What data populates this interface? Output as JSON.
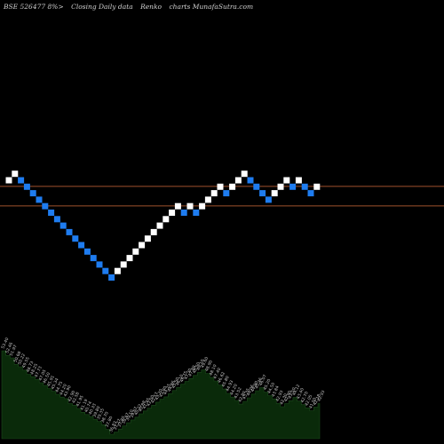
{
  "header": {
    "symbol": "BSE 526477 8%>",
    "description": "Closing Daily data",
    "chart_type_label": "Renko",
    "site": "charts MunafaSutra.com"
  },
  "colors": {
    "background": "#000000",
    "up_brick": "#ffffff",
    "down_brick": "#1e7cf0",
    "level_line": "#a0522d",
    "volume_fill": "#0a2a0a",
    "volume_label": "#c8c8c8"
  },
  "chart_data": {
    "type": "renko",
    "title": "",
    "xlabel": "",
    "ylabel": "",
    "bricks": [
      {
        "step": 0,
        "level": 0,
        "dir": "up"
      },
      {
        "step": 1,
        "level": 1,
        "dir": "up"
      },
      {
        "step": 2,
        "level": 0,
        "dir": "down"
      },
      {
        "step": 3,
        "level": -1,
        "dir": "down"
      },
      {
        "step": 4,
        "level": -2,
        "dir": "down"
      },
      {
        "step": 5,
        "level": -3,
        "dir": "down"
      },
      {
        "step": 6,
        "level": -4,
        "dir": "down"
      },
      {
        "step": 7,
        "level": -5,
        "dir": "down"
      },
      {
        "step": 8,
        "level": -6,
        "dir": "down"
      },
      {
        "step": 9,
        "level": -7,
        "dir": "down"
      },
      {
        "step": 10,
        "level": -8,
        "dir": "down"
      },
      {
        "step": 11,
        "level": -9,
        "dir": "down"
      },
      {
        "step": 12,
        "level": -10,
        "dir": "down"
      },
      {
        "step": 13,
        "level": -11,
        "dir": "down"
      },
      {
        "step": 14,
        "level": -12,
        "dir": "down"
      },
      {
        "step": 15,
        "level": -13,
        "dir": "down"
      },
      {
        "step": 16,
        "level": -14,
        "dir": "down"
      },
      {
        "step": 17,
        "level": -15,
        "dir": "down"
      },
      {
        "step": 18,
        "level": -14,
        "dir": "up"
      },
      {
        "step": 19,
        "level": -13,
        "dir": "up"
      },
      {
        "step": 20,
        "level": -12,
        "dir": "up"
      },
      {
        "step": 21,
        "level": -11,
        "dir": "up"
      },
      {
        "step": 22,
        "level": -10,
        "dir": "up"
      },
      {
        "step": 23,
        "level": -9,
        "dir": "up"
      },
      {
        "step": 24,
        "level": -8,
        "dir": "up"
      },
      {
        "step": 25,
        "level": -7,
        "dir": "up"
      },
      {
        "step": 26,
        "level": -6,
        "dir": "up"
      },
      {
        "step": 27,
        "level": -5,
        "dir": "up"
      },
      {
        "step": 28,
        "level": -4,
        "dir": "up"
      },
      {
        "step": 29,
        "level": -5,
        "dir": "down"
      },
      {
        "step": 30,
        "level": -4,
        "dir": "up"
      },
      {
        "step": 31,
        "level": -5,
        "dir": "down"
      },
      {
        "step": 32,
        "level": -4,
        "dir": "up"
      },
      {
        "step": 33,
        "level": -3,
        "dir": "up"
      },
      {
        "step": 34,
        "level": -2,
        "dir": "up"
      },
      {
        "step": 35,
        "level": -1,
        "dir": "up"
      },
      {
        "step": 36,
        "level": -2,
        "dir": "down"
      },
      {
        "step": 37,
        "level": -1,
        "dir": "up"
      },
      {
        "step": 38,
        "level": 0,
        "dir": "up"
      },
      {
        "step": 39,
        "level": 1,
        "dir": "up"
      },
      {
        "step": 40,
        "level": 0,
        "dir": "down"
      },
      {
        "step": 41,
        "level": -1,
        "dir": "down"
      },
      {
        "step": 42,
        "level": -2,
        "dir": "down"
      },
      {
        "step": 43,
        "level": -3,
        "dir": "down"
      },
      {
        "step": 44,
        "level": -2,
        "dir": "up"
      },
      {
        "step": 45,
        "level": -1,
        "dir": "up"
      },
      {
        "step": 46,
        "level": 0,
        "dir": "up"
      },
      {
        "step": 47,
        "level": -1,
        "dir": "down"
      },
      {
        "step": 48,
        "level": 0,
        "dir": "up"
      },
      {
        "step": 49,
        "level": -1,
        "dir": "down"
      },
      {
        "step": 50,
        "level": -2,
        "dir": "down"
      },
      {
        "step": 51,
        "level": -1,
        "dir": "up"
      }
    ],
    "reference_lines": [
      -0.95,
      -3.95
    ],
    "volume_labels": [
      "53.40",
      "52.46",
      "51.97",
      "50.68",
      "50.22",
      "49.55",
      "48.73",
      "48.25",
      "47.73",
      "47.05",
      "46.50",
      "45.91",
      "45.34",
      "44.75",
      "44.20",
      "43.90",
      "42.90",
      "42.58",
      "41.95",
      "41.19",
      "40.74",
      "40.33",
      "39.80",
      "39.35",
      "38.70",
      "37.80",
      "36.83",
      "37.27",
      "37.85",
      "38.47",
      "39.10",
      "39.67",
      "40.22",
      "40.88",
      "41.45",
      "42.00",
      "42.57",
      "43.20",
      "43.80",
      "44.25",
      "44.86",
      "45.50",
      "46.10",
      "46.75",
      "47.30",
      "47.88",
      "48.50",
      "49.10",
      "49.60",
      "48.90",
      "48.10",
      "47.40",
      "46.62",
      "45.80",
      "44.93",
      "44.20",
      "43.52",
      "42.80",
      "43.35",
      "44.06",
      "44.80",
      "45.46",
      "46.07",
      "45.20",
      "44.50",
      "43.84",
      "42.93",
      "42.30",
      "42.90",
      "43.50",
      "44.12",
      "43.40",
      "42.70",
      "42.05",
      "41.50",
      "42.18",
      "42.93"
    ]
  }
}
